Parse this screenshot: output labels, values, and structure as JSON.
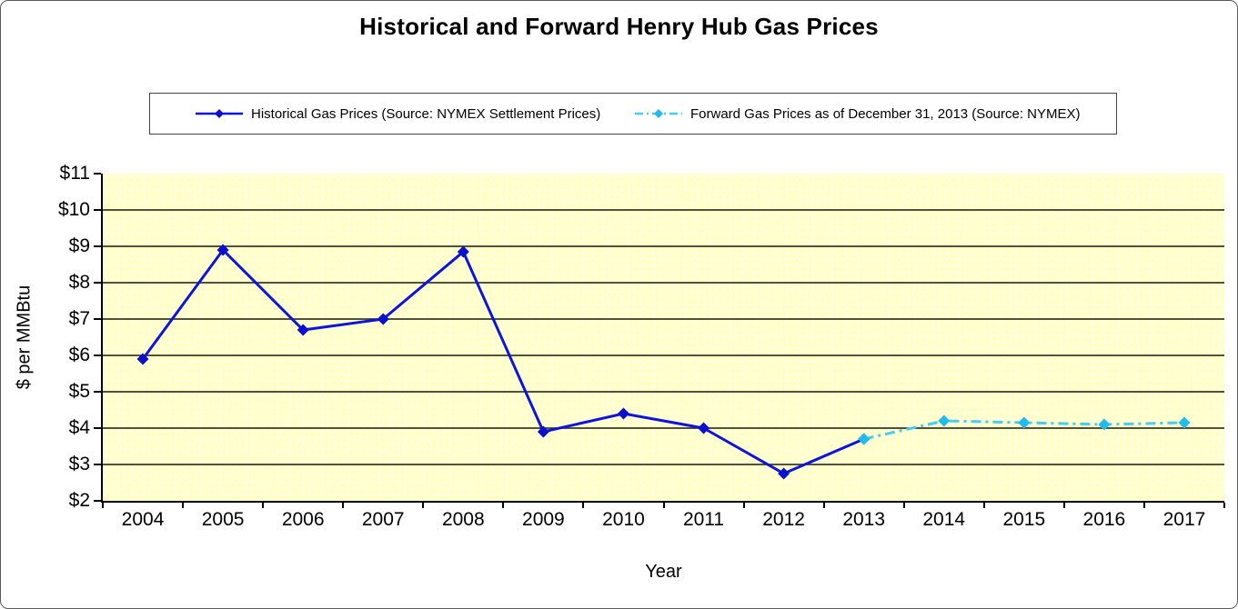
{
  "chart_data": {
    "type": "line",
    "title": "Historical and Forward Henry Hub Gas Prices",
    "xlabel": "Year",
    "ylabel": "$ per MMBtu",
    "categories": [
      "2004",
      "2005",
      "2006",
      "2007",
      "2008",
      "2009",
      "2010",
      "2011",
      "2012",
      "2013",
      "2014",
      "2015",
      "2016",
      "2017"
    ],
    "ylim": [
      2,
      11
    ],
    "ytick_step": 1,
    "yticks_labels": [
      "$11",
      "$10",
      "$9",
      "$8",
      "$7",
      "$6",
      "$5",
      "$4",
      "$3",
      "$2"
    ],
    "grid": true,
    "legend_position": "top-center",
    "plot_bg": "#FFFFCC",
    "series": [
      {
        "name": "Historical Gas Prices (Source: NYMEX Settlement Prices)",
        "color": "#0D14DE",
        "marker_color": "#0B10CC",
        "line_style": "solid",
        "marker": "diamond",
        "x": [
          "2004",
          "2005",
          "2006",
          "2007",
          "2008",
          "2009",
          "2010",
          "2011",
          "2012",
          "2013"
        ],
        "values": [
          5.9,
          8.9,
          6.7,
          7.0,
          8.85,
          3.9,
          4.4,
          4.0,
          2.75,
          3.7
        ]
      },
      {
        "name": "Forward Gas Prices as of December 31, 2013 (Source: NYMEX)",
        "color": "#45CDF2",
        "marker_color": "#1FBCEC",
        "line_style": "dash-dot",
        "marker": "diamond",
        "x": [
          "2013",
          "2014",
          "2015",
          "2016",
          "2017"
        ],
        "values": [
          3.7,
          4.2,
          4.15,
          4.1,
          4.15
        ]
      }
    ]
  },
  "colors": {
    "gridline": "#3A3A22",
    "axis": "#000000"
  }
}
